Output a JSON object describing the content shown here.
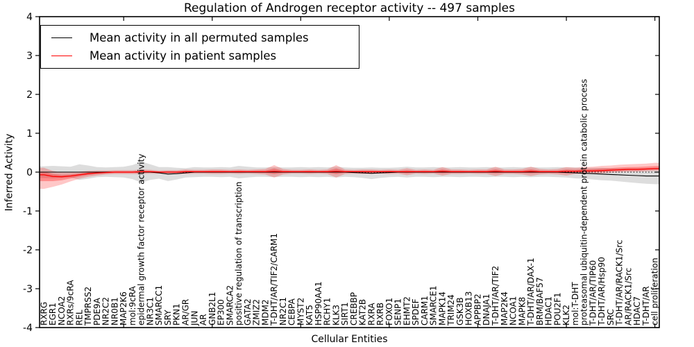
{
  "chart_data": {
    "type": "line",
    "title": "Regulation of Androgen receptor activity -- 497 samples",
    "xlabel": "Cellular Entities",
    "ylabel": "Inferred Activity",
    "ylim": [
      -4,
      4
    ],
    "yticks": [
      "4",
      "3",
      "2",
      "1",
      "0",
      "-1",
      "-2",
      "-3",
      "-4"
    ],
    "ytick_values": [
      4,
      3,
      2,
      1,
      0,
      -1,
      -2,
      -3,
      -4
    ],
    "xticks_every": 10,
    "grid": false,
    "legend_position": "upper left",
    "zero_line": {
      "style": "dotted",
      "color": "#000000",
      "y": 0
    },
    "categories": [
      "RXRG",
      "EGR1",
      "NCOA2",
      "RXRs/9cRA",
      "REL",
      "TMPRSS2",
      "PDE9A",
      "NR2C2",
      "NR0B1",
      "MAP2K6",
      "mol:9cRA",
      "epidermal growth factor receptor activity",
      "NR3C1",
      "SMARCC1",
      "SRY",
      "PKN1",
      "AR/GR",
      "JUN",
      "AR",
      "GNB2L1",
      "EP300",
      "SMARCA2",
      "positive regulation of transcription",
      "GATA2",
      "ZMIZ2",
      "MDM2",
      "T-DHT/AR/TIF2/CARM1",
      "NR2C1",
      "CEBPA",
      "MYST2",
      "KAT5",
      "HSP90AA1",
      "RCHY1",
      "KLK3",
      "SIRT1",
      "CREBBP",
      "KAT2B",
      "RXRA",
      "RXRB",
      "FOXO1",
      "SENP1",
      "EHMT2",
      "SPDEF",
      "CARM1",
      "SMARCE1",
      "MAPK14",
      "TRIM24",
      "GSK3B",
      "HOXB13",
      "APPBP2",
      "DNAJA1",
      "T-DHT/AR/TIF2",
      "MAP2K4",
      "NCOA1",
      "MAPK8",
      "T-DHT/AR/DAX-1",
      "BRM/BAF57",
      "HDAC1",
      "POU2F1",
      "KLK2",
      "mol:T-DHT",
      "proteasomal ubiquitin-dependent protein catabolic process",
      "T-DHT/AR/TIP60",
      "T-DHT/AR/Hsp90",
      "SRC",
      "T-DHT/AR/RACK1/Src",
      "AR/RACK1/Src",
      "HDAC7",
      "T-DHT/AR",
      "cell proliferation"
    ],
    "series": [
      {
        "name": "Mean activity in all permuted samples",
        "color": "#000000",
        "band_color": "#bbbbbb",
        "band_opacity": 0.5,
        "values": [
          0,
          0,
          0,
          0,
          0,
          0,
          0,
          0,
          0,
          0,
          0,
          0,
          0,
          -0.02,
          -0.05,
          -0.04,
          -0.02,
          0,
          0,
          0,
          0,
          0,
          0,
          0,
          0,
          0,
          0,
          0,
          0,
          0,
          0,
          0,
          0,
          0,
          0,
          -0.01,
          -0.02,
          -0.03,
          -0.02,
          -0.01,
          0,
          0,
          0,
          0,
          0,
          0,
          0,
          0,
          0,
          0,
          0,
          0,
          0,
          0,
          0,
          0,
          0,
          0,
          0,
          -0.01,
          -0.02,
          -0.03,
          -0.04,
          -0.05,
          -0.06,
          -0.07,
          -0.08,
          -0.09,
          -0.1,
          -0.1
        ],
        "upper": [
          0.15,
          0.16,
          0.15,
          0.14,
          0.2,
          0.17,
          0.13,
          0.12,
          0.13,
          0.14,
          0.18,
          0.27,
          0.2,
          0.13,
          0.13,
          0.11,
          0.1,
          0.13,
          0.12,
          0.12,
          0.13,
          0.12,
          0.16,
          0.14,
          0.12,
          0.12,
          0.13,
          0.12,
          0.12,
          0.13,
          0.12,
          0.13,
          0.12,
          0.14,
          0.12,
          0.11,
          0.11,
          0.12,
          0.11,
          0.11,
          0.12,
          0.14,
          0.12,
          0.12,
          0.13,
          0.12,
          0.12,
          0.13,
          0.12,
          0.12,
          0.13,
          0.12,
          0.12,
          0.13,
          0.12,
          0.13,
          0.12,
          0.12,
          0.13,
          0.12,
          0.12,
          0.11,
          0.11,
          0.11,
          0.1,
          0.1,
          0.1,
          0.1,
          0.1,
          0.11
        ],
        "lower": [
          -0.15,
          -0.16,
          -0.15,
          -0.14,
          -0.2,
          -0.17,
          -0.13,
          -0.12,
          -0.13,
          -0.14,
          -0.18,
          -0.27,
          -0.2,
          -0.17,
          -0.23,
          -0.19,
          -0.14,
          -0.13,
          -0.12,
          -0.12,
          -0.13,
          -0.12,
          -0.16,
          -0.14,
          -0.12,
          -0.12,
          -0.13,
          -0.12,
          -0.12,
          -0.13,
          -0.12,
          -0.13,
          -0.12,
          -0.14,
          -0.12,
          -0.13,
          -0.15,
          -0.18,
          -0.15,
          -0.13,
          -0.12,
          -0.14,
          -0.12,
          -0.12,
          -0.13,
          -0.12,
          -0.12,
          -0.13,
          -0.12,
          -0.12,
          -0.13,
          -0.12,
          -0.12,
          -0.13,
          -0.12,
          -0.13,
          -0.12,
          -0.12,
          -0.13,
          -0.14,
          -0.16,
          -0.17,
          -0.19,
          -0.21,
          -0.22,
          -0.24,
          -0.26,
          -0.28,
          -0.3,
          -0.31
        ]
      },
      {
        "name": "Mean activity in patient samples",
        "color": "#ff0000",
        "band_color": "#ff0000",
        "band_opacity": 0.22,
        "inner_band_scale": 0.45,
        "inner_band_opacity": 0.3,
        "values": [
          -0.07,
          -0.11,
          -0.12,
          -0.1,
          -0.07,
          -0.04,
          -0.02,
          -0.01,
          0,
          0,
          0,
          0.01,
          0.01,
          0,
          0,
          0,
          0.01,
          0.01,
          0.01,
          0.01,
          0.01,
          0.01,
          0.01,
          0.01,
          0.01,
          0.01,
          0.02,
          0.01,
          0.01,
          0.01,
          0.01,
          0.01,
          0.01,
          0.02,
          0.01,
          0.01,
          0.01,
          0.01,
          0.01,
          0.01,
          0.01,
          0.01,
          0.01,
          0.01,
          0.01,
          0.02,
          0.01,
          0.01,
          0.01,
          0.01,
          0.01,
          0.02,
          0.01,
          0.01,
          0.01,
          0.02,
          0.01,
          0.01,
          0.01,
          0.02,
          0.02,
          0.03,
          0.03,
          0.04,
          0.05,
          0.06,
          0.07,
          0.07,
          0.08,
          0.09
        ],
        "upper": [
          0.11,
          0.03,
          -0.01,
          -0.01,
          0.01,
          0.03,
          0.04,
          0.04,
          0.05,
          0.05,
          0.05,
          0.07,
          0.06,
          0.04,
          0.05,
          0.05,
          0.07,
          0.06,
          0.06,
          0.07,
          0.07,
          0.06,
          0.07,
          0.06,
          0.07,
          0.08,
          0.18,
          0.08,
          0.06,
          0.06,
          0.07,
          0.06,
          0.07,
          0.18,
          0.07,
          0.06,
          0.07,
          0.07,
          0.06,
          0.07,
          0.06,
          0.1,
          0.06,
          0.07,
          0.06,
          0.13,
          0.07,
          0.07,
          0.06,
          0.07,
          0.07,
          0.14,
          0.07,
          0.07,
          0.08,
          0.14,
          0.08,
          0.07,
          0.08,
          0.13,
          0.11,
          0.13,
          0.14,
          0.16,
          0.17,
          0.19,
          0.2,
          0.21,
          0.22,
          0.24
        ],
        "lower": [
          -0.43,
          -0.38,
          -0.32,
          -0.24,
          -0.17,
          -0.12,
          -0.09,
          -0.06,
          -0.05,
          -0.05,
          -0.05,
          -0.05,
          -0.04,
          -0.04,
          -0.05,
          -0.05,
          -0.05,
          -0.04,
          -0.04,
          -0.05,
          -0.05,
          -0.04,
          -0.05,
          -0.04,
          -0.05,
          -0.06,
          -0.14,
          -0.06,
          -0.04,
          -0.04,
          -0.05,
          -0.04,
          -0.05,
          -0.14,
          -0.05,
          -0.04,
          -0.05,
          -0.05,
          -0.04,
          -0.05,
          -0.04,
          -0.08,
          -0.04,
          -0.05,
          -0.04,
          -0.09,
          -0.05,
          -0.05,
          -0.04,
          -0.05,
          -0.05,
          -0.1,
          -0.05,
          -0.05,
          -0.06,
          -0.1,
          -0.06,
          -0.05,
          -0.06,
          -0.09,
          -0.05,
          -0.04,
          -0.04,
          -0.03,
          -0.01,
          0,
          0.01,
          0.01,
          0.02,
          0.03
        ]
      }
    ]
  }
}
